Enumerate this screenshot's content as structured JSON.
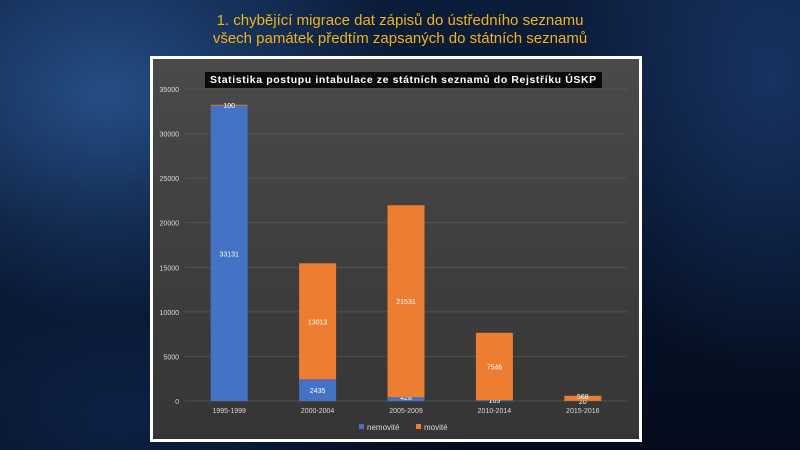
{
  "slide": {
    "title_line1": "1. chybějící migrace dat zápisů do ústředního seznamu",
    "title_line2": "všech památek předtím zapsaných do státních seznamů"
  },
  "chart_data": {
    "type": "bar",
    "stacked": true,
    "title": "Statistika postupu intabulace  ze státních seznamů do Rejstříku ÚSKP",
    "categories": [
      "1995-1999",
      "2000-2004",
      "2005-2009",
      "2010-2014",
      "2015-2016"
    ],
    "series": [
      {
        "name": "nemovité",
        "color": "#4472c4",
        "values": [
          33131,
          2435,
          428,
          105,
          20
        ]
      },
      {
        "name": "movité",
        "color": "#ed7d31",
        "values": [
          100,
          13013,
          21531,
          7546,
          568
        ]
      }
    ],
    "ylim": [
      0,
      35000
    ],
    "yticks": [
      0,
      5000,
      10000,
      15000,
      20000,
      25000,
      30000,
      35000
    ],
    "grid": true,
    "legend": "bottom"
  }
}
